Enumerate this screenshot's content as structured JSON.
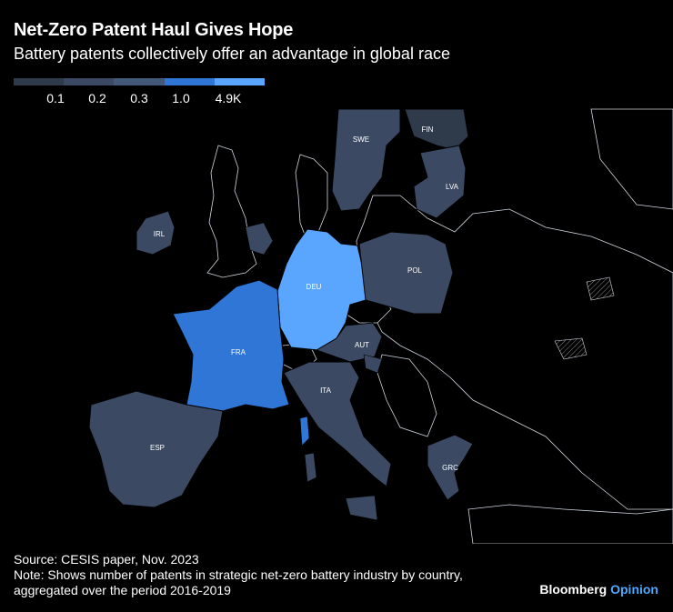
{
  "header": {
    "title": "Net-Zero Patent Haul Gives Hope",
    "subtitle": "Battery patents collectively offer an advantage in global race"
  },
  "legend": {
    "colors": [
      "#2f3a4b",
      "#3b4a62",
      "#44587a",
      "#2f76d6",
      "#5aa6ff"
    ],
    "thresholds": [
      "0.1",
      "0.2",
      "0.3",
      "1.0",
      "4.9K"
    ]
  },
  "map": {
    "countries": [
      {
        "code": "FIN",
        "label": "FIN",
        "color": "#2f3a4b"
      },
      {
        "code": "SWE",
        "label": "SWE",
        "color": "#3b4a62"
      },
      {
        "code": "LVA",
        "label": "LVA",
        "color": "#3b4a62"
      },
      {
        "code": "IRL",
        "label": "IRL",
        "color": "#3b4a62"
      },
      {
        "code": "DEU",
        "label": "DEU",
        "color": "#5aa6ff"
      },
      {
        "code": "POL",
        "label": "POL",
        "color": "#3b4a62"
      },
      {
        "code": "FRA",
        "label": "FRA",
        "color": "#2f76d6"
      },
      {
        "code": "AUT",
        "label": "AUT",
        "color": "#3b4a62"
      },
      {
        "code": "ITA",
        "label": "ITA",
        "color": "#3b4a62"
      },
      {
        "code": "ESP",
        "label": "ESP",
        "color": "#3b4a62"
      },
      {
        "code": "GRC",
        "label": "GRC",
        "color": "#3b4a62"
      }
    ]
  },
  "footer": {
    "source": "Source: CESIS paper, Nov. 2023",
    "note_line1": "Note: Shows number of patents in strategic net-zero battery industry by country,",
    "note_line2": "aggregated over the period 2016-2019"
  },
  "brand": {
    "name": "Bloomberg",
    "opinion": "Opinion"
  }
}
